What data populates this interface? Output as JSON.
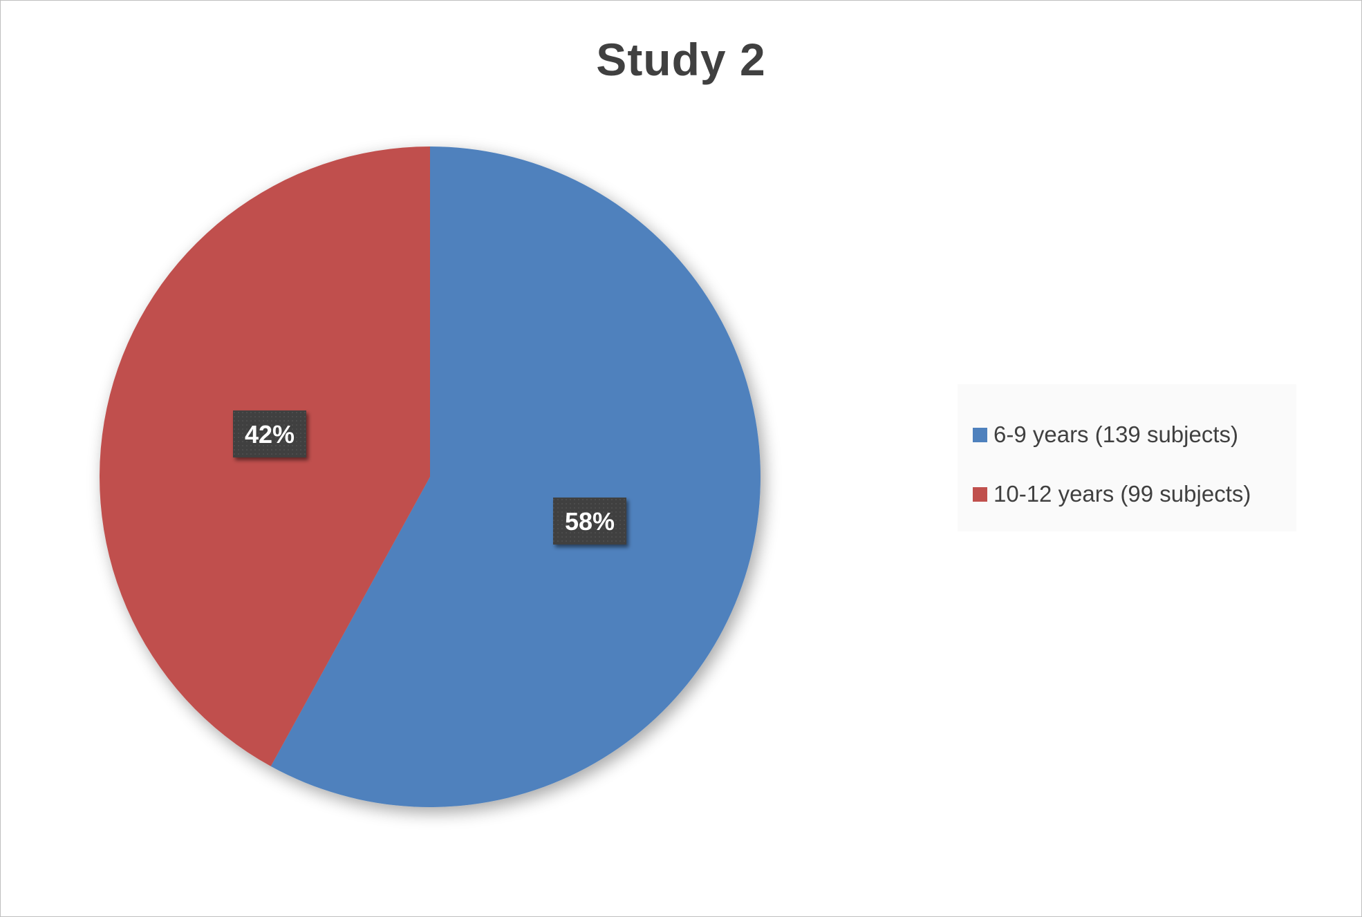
{
  "chart_data": {
    "type": "pie",
    "title": "Study 2",
    "categories": [
      "6-9 years (139 subjects)",
      "10-12 years (99 subjects)"
    ],
    "values": [
      58,
      42
    ],
    "data_labels": [
      "58%",
      "42%"
    ],
    "colors": [
      "#4f81bd",
      "#c0504d"
    ],
    "label_box_color": "#404040",
    "label_text_color": "#ffffff",
    "legend_position": "right"
  }
}
